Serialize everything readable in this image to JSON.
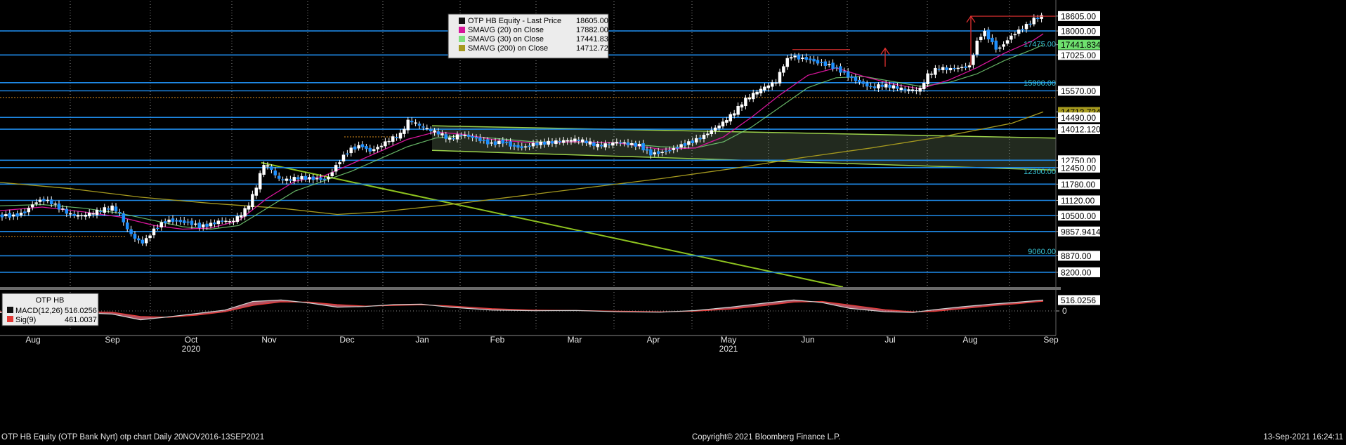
{
  "chart_data": {
    "type": "candlestick",
    "ticker": "OTP HB Equity",
    "period": "Daily",
    "y_range": [
      7600,
      19200
    ],
    "x_labels": [
      "Aug",
      "Sep",
      "Oct",
      "Nov",
      "Dec",
      "Jan",
      "Feb",
      "Mar",
      "Apr",
      "May",
      "Jun",
      "Jul",
      "Aug",
      "Sep"
    ],
    "year_labels": [
      "2020",
      "2021"
    ],
    "legend": [
      {
        "label": "OTP HB Equity - Last Price",
        "value": "18605.00",
        "color": "#111111"
      },
      {
        "label": "SMAVG (20)  on Close",
        "value": "17882.00",
        "color": "#d6159a"
      },
      {
        "label": "SMAVG (30)  on Close",
        "value": "17441.834",
        "color": "#7ee07e"
      },
      {
        "label": "SMAVG (200)  on Close",
        "value": "14712.7246",
        "color": "#a69a1f"
      }
    ],
    "price_levels": [
      18000,
      17025,
      15900,
      15570,
      14490,
      14012.1201,
      12750,
      12450,
      11780,
      11120,
      10500,
      9857.9414,
      8870,
      8200
    ],
    "right_tags": [
      {
        "text": "18605.00",
        "value": 18605,
        "bg": "#ffffff",
        "fg": "#000000"
      },
      {
        "text": "18000.00",
        "value": 18000,
        "bg": "#ffffff",
        "fg": "#000000"
      },
      {
        "text": "17441.834",
        "value": 17441.834,
        "bg": "#6ee06e",
        "fg": "#000000"
      },
      {
        "text": "17025.00",
        "value": 17025,
        "bg": "#ffffff",
        "fg": "#000000"
      },
      {
        "text": "15570.00",
        "value": 15570,
        "bg": "#ffffff",
        "fg": "#000000"
      },
      {
        "text": "14712.7246",
        "value": 14712.7246,
        "bg": "#a69a1f",
        "fg": "#000000"
      },
      {
        "text": "14490.00",
        "value": 14490,
        "bg": "#ffffff",
        "fg": "#000000"
      },
      {
        "text": "14012.1201",
        "value": 14012.1201,
        "bg": "#ffffff",
        "fg": "#000000"
      },
      {
        "text": "12750.00",
        "value": 12750,
        "bg": "#ffffff",
        "fg": "#000000"
      },
      {
        "text": "12450.00",
        "value": 12450,
        "bg": "#ffffff",
        "fg": "#000000"
      },
      {
        "text": "11780.00",
        "value": 11780,
        "bg": "#ffffff",
        "fg": "#000000"
      },
      {
        "text": "11120.00",
        "value": 11120,
        "bg": "#ffffff",
        "fg": "#000000"
      },
      {
        "text": "10500.00",
        "value": 10500,
        "bg": "#ffffff",
        "fg": "#000000"
      },
      {
        "text": "9857.9414",
        "value": 9857.9414,
        "bg": "#ffffff",
        "fg": "#000000"
      },
      {
        "text": "8870.00",
        "value": 8870,
        "bg": "#ffffff",
        "fg": "#000000"
      },
      {
        "text": "8200.00",
        "value": 8200,
        "bg": "#ffffff",
        "fg": "#000000"
      }
    ],
    "cyan_labels": [
      {
        "text": "17475.00",
        "value": 17475
      },
      {
        "text": "15900.00",
        "value": 15900
      },
      {
        "text": "12300.00",
        "value": 12300
      },
      {
        "text": "9060.00",
        "value": 9060
      }
    ],
    "close_points": [
      [
        0,
        10500
      ],
      [
        20,
        10480
      ],
      [
        35,
        10620
      ],
      [
        48,
        11000
      ],
      [
        60,
        11150
      ],
      [
        72,
        11050
      ],
      [
        85,
        10800
      ],
      [
        100,
        10550
      ],
      [
        115,
        10500
      ],
      [
        130,
        10600
      ],
      [
        145,
        10750
      ],
      [
        160,
        10850
      ],
      [
        170,
        10600
      ],
      [
        182,
        9900
      ],
      [
        195,
        9500
      ],
      [
        205,
        9400
      ],
      [
        215,
        9800
      ],
      [
        228,
        10150
      ],
      [
        240,
        10300
      ],
      [
        255,
        10250
      ],
      [
        270,
        10200
      ],
      [
        285,
        10050
      ],
      [
        300,
        10150
      ],
      [
        315,
        10300
      ],
      [
        330,
        10250
      ],
      [
        345,
        10600
      ],
      [
        355,
        11000
      ],
      [
        365,
        11700
      ],
      [
        375,
        12600
      ],
      [
        385,
        12450
      ],
      [
        395,
        12000
      ],
      [
        410,
        11950
      ],
      [
        425,
        12050
      ],
      [
        445,
        12000
      ],
      [
        465,
        11950
      ],
      [
        478,
        12500
      ],
      [
        490,
        12950
      ],
      [
        500,
        13200
      ],
      [
        515,
        13350
      ],
      [
        525,
        13100
      ],
      [
        540,
        13300
      ],
      [
        555,
        13600
      ],
      [
        570,
        13800
      ],
      [
        582,
        14400
      ],
      [
        595,
        14200
      ],
      [
        610,
        14000
      ],
      [
        625,
        13850
      ],
      [
        640,
        13600
      ],
      [
        655,
        13800
      ],
      [
        670,
        13700
      ],
      [
        685,
        13550
      ],
      [
        700,
        13400
      ],
      [
        715,
        13500
      ],
      [
        730,
        13300
      ],
      [
        745,
        13250
      ],
      [
        760,
        13400
      ],
      [
        775,
        13450
      ],
      [
        790,
        13500
      ],
      [
        805,
        13550
      ],
      [
        820,
        13600
      ],
      [
        835,
        13500
      ],
      [
        850,
        13350
      ],
      [
        865,
        13400
      ],
      [
        880,
        13500
      ],
      [
        895,
        13400
      ],
      [
        910,
        13350
      ],
      [
        925,
        13000
      ],
      [
        940,
        13050
      ],
      [
        955,
        13150
      ],
      [
        970,
        13350
      ],
      [
        985,
        13500
      ],
      [
        1000,
        13700
      ],
      [
        1015,
        14000
      ],
      [
        1030,
        14300
      ],
      [
        1045,
        14700
      ],
      [
        1060,
        15200
      ],
      [
        1075,
        15500
      ],
      [
        1090,
        15750
      ],
      [
        1105,
        15950
      ],
      [
        1115,
        16600
      ],
      [
        1125,
        17000
      ],
      [
        1135,
        16900
      ],
      [
        1150,
        16850
      ],
      [
        1165,
        16700
      ],
      [
        1180,
        16600
      ],
      [
        1195,
        16400
      ],
      [
        1210,
        16100
      ],
      [
        1225,
        15900
      ],
      [
        1240,
        15700
      ],
      [
        1255,
        15800
      ],
      [
        1270,
        15750
      ],
      [
        1285,
        15650
      ],
      [
        1300,
        15600
      ],
      [
        1310,
        15650
      ],
      [
        1320,
        16200
      ],
      [
        1335,
        16500
      ],
      [
        1350,
        16450
      ],
      [
        1365,
        16500
      ],
      [
        1380,
        16550
      ],
      [
        1390,
        17500
      ],
      [
        1400,
        18000
      ],
      [
        1410,
        17600
      ],
      [
        1420,
        17200
      ],
      [
        1430,
        17500
      ],
      [
        1440,
        17800
      ],
      [
        1455,
        18100
      ],
      [
        1465,
        18300
      ],
      [
        1475,
        18550
      ],
      [
        1485,
        18605
      ]
    ],
    "sma20_points": [
      [
        0,
        10700
      ],
      [
        60,
        10850
      ],
      [
        120,
        10650
      ],
      [
        170,
        10450
      ],
      [
        220,
        10100
      ],
      [
        260,
        9950
      ],
      [
        300,
        10000
      ],
      [
        340,
        10300
      ],
      [
        380,
        11200
      ],
      [
        420,
        11900
      ],
      [
        460,
        12100
      ],
      [
        500,
        12600
      ],
      [
        540,
        13100
      ],
      [
        580,
        13600
      ],
      [
        620,
        13900
      ],
      [
        660,
        13800
      ],
      [
        700,
        13600
      ],
      [
        760,
        13450
      ],
      [
        820,
        13500
      ],
      [
        880,
        13450
      ],
      [
        940,
        13200
      ],
      [
        990,
        13250
      ],
      [
        1030,
        13700
      ],
      [
        1070,
        14500
      ],
      [
        1110,
        15400
      ],
      [
        1150,
        16200
      ],
      [
        1190,
        16500
      ],
      [
        1230,
        16150
      ],
      [
        1270,
        15850
      ],
      [
        1310,
        15650
      ],
      [
        1350,
        16000
      ],
      [
        1390,
        16500
      ],
      [
        1430,
        17100
      ],
      [
        1470,
        17600
      ],
      [
        1485,
        17882
      ]
    ],
    "sma30_points": [
      [
        0,
        10900
      ],
      [
        60,
        10950
      ],
      [
        120,
        10800
      ],
      [
        170,
        10600
      ],
      [
        220,
        10300
      ],
      [
        260,
        10050
      ],
      [
        300,
        9950
      ],
      [
        340,
        10100
      ],
      [
        380,
        10800
      ],
      [
        420,
        11500
      ],
      [
        460,
        11900
      ],
      [
        500,
        12300
      ],
      [
        540,
        12800
      ],
      [
        580,
        13300
      ],
      [
        620,
        13650
      ],
      [
        660,
        13750
      ],
      [
        700,
        13650
      ],
      [
        760,
        13500
      ],
      [
        820,
        13480
      ],
      [
        880,
        13450
      ],
      [
        940,
        13300
      ],
      [
        990,
        13250
      ],
      [
        1030,
        13500
      ],
      [
        1070,
        14100
      ],
      [
        1110,
        14900
      ],
      [
        1150,
        15700
      ],
      [
        1190,
        16100
      ],
      [
        1230,
        16150
      ],
      [
        1270,
        15950
      ],
      [
        1310,
        15750
      ],
      [
        1350,
        15900
      ],
      [
        1390,
        16250
      ],
      [
        1430,
        16800
      ],
      [
        1470,
        17250
      ],
      [
        1485,
        17441.834
      ]
    ],
    "sma200_points": [
      [
        0,
        11850
      ],
      [
        100,
        11600
      ],
      [
        200,
        11250
      ],
      [
        300,
        11000
      ],
      [
        400,
        10800
      ],
      [
        480,
        10550
      ],
      [
        540,
        10650
      ],
      [
        640,
        10950
      ],
      [
        740,
        11300
      ],
      [
        840,
        11650
      ],
      [
        940,
        12000
      ],
      [
        1040,
        12400
      ],
      [
        1140,
        12850
      ],
      [
        1240,
        13250
      ],
      [
        1340,
        13700
      ],
      [
        1440,
        14250
      ],
      [
        1485,
        14712.7246
      ]
    ],
    "macd": {
      "name": "OTP HB",
      "macd_label": "MACD(12,26)",
      "macd_value": "516.0256",
      "sig_label": "Sig(9)",
      "sig_value": "461.0037",
      "y_range": [
        -900,
        900
      ],
      "zero_tick": "0",
      "macd_points": [
        [
          0,
          -80
        ],
        [
          100,
          -60
        ],
        [
          160,
          -150
        ],
        [
          200,
          -420
        ],
        [
          240,
          -280
        ],
        [
          280,
          -120
        ],
        [
          320,
          40
        ],
        [
          360,
          450
        ],
        [
          400,
          520
        ],
        [
          440,
          380
        ],
        [
          480,
          180
        ],
        [
          520,
          210
        ],
        [
          560,
          300
        ],
        [
          600,
          320
        ],
        [
          640,
          180
        ],
        [
          700,
          40
        ],
        [
          760,
          10
        ],
        [
          820,
          20
        ],
        [
          880,
          -40
        ],
        [
          940,
          -60
        ],
        [
          990,
          20
        ],
        [
          1040,
          180
        ],
        [
          1090,
          380
        ],
        [
          1130,
          520
        ],
        [
          1170,
          400
        ],
        [
          1210,
          120
        ],
        [
          1260,
          -40
        ],
        [
          1300,
          -70
        ],
        [
          1330,
          60
        ],
        [
          1370,
          200
        ],
        [
          1410,
          320
        ],
        [
          1450,
          420
        ],
        [
          1485,
          516
        ]
      ],
      "sig_points": [
        [
          0,
          -40
        ],
        [
          100,
          -30
        ],
        [
          160,
          -60
        ],
        [
          200,
          -260
        ],
        [
          240,
          -300
        ],
        [
          280,
          -200
        ],
        [
          320,
          -40
        ],
        [
          360,
          260
        ],
        [
          400,
          430
        ],
        [
          440,
          420
        ],
        [
          480,
          300
        ],
        [
          520,
          230
        ],
        [
          560,
          260
        ],
        [
          600,
          290
        ],
        [
          640,
          240
        ],
        [
          700,
          110
        ],
        [
          760,
          40
        ],
        [
          820,
          20
        ],
        [
          880,
          -10
        ],
        [
          940,
          -40
        ],
        [
          990,
          -10
        ],
        [
          1040,
          90
        ],
        [
          1090,
          260
        ],
        [
          1130,
          420
        ],
        [
          1170,
          450
        ],
        [
          1210,
          280
        ],
        [
          1260,
          60
        ],
        [
          1300,
          -40
        ],
        [
          1330,
          -20
        ],
        [
          1370,
          110
        ],
        [
          1410,
          240
        ],
        [
          1450,
          350
        ],
        [
          1485,
          461
        ]
      ]
    }
  },
  "footer": {
    "left": "OTP HB Equity (OTP Bank Nyrt) otp chart  Daily 20NOV2016-13SEP2021",
    "center": "Copyright© 2021 Bloomberg Finance L.P.",
    "right": "13-Sep-2021 16:24:11"
  }
}
